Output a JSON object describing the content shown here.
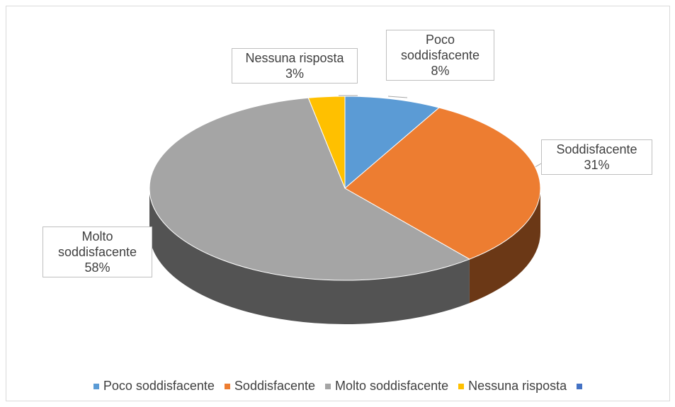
{
  "chart_data": {
    "type": "pie3d",
    "categories": [
      "Poco soddisfacente",
      "Soddisfacente",
      "Molto soddisfacente",
      "Nessuna risposta",
      null
    ],
    "values": [
      8,
      31,
      58,
      3,
      null
    ],
    "value_labels": [
      "8%",
      "31%",
      "58%",
      "3%",
      null
    ],
    "colors": [
      "#5b9bd5",
      "#ed7d31",
      "#a5a5a5",
      "#ffc000",
      "#4472c4"
    ],
    "legend": "bottom"
  }
}
